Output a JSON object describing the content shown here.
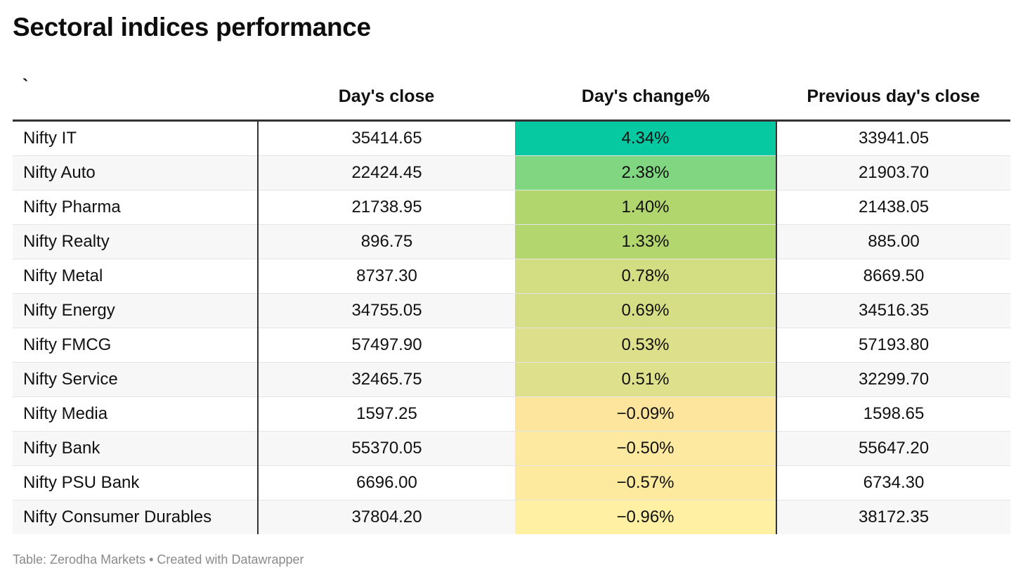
{
  "title": "Sectoral indices performance",
  "footer": "Table: Zerodha Markets • Created with Datawrapper",
  "chart_data": {
    "type": "table",
    "title": "Sectoral indices performance",
    "columns": [
      "`",
      "Day's close",
      "Day's change%",
      "Previous day's close"
    ],
    "rows": [
      {
        "name": "Nifty IT",
        "close": "35414.65",
        "change": "4.34%",
        "change_value": 4.34,
        "prev": "33941.05",
        "color": "#07c9a1"
      },
      {
        "name": "Nifty Auto",
        "close": "22424.45",
        "change": "2.38%",
        "change_value": 2.38,
        "prev": "21903.70",
        "color": "#81d681"
      },
      {
        "name": "Nifty Pharma",
        "close": "21738.95",
        "change": "1.40%",
        "change_value": 1.4,
        "prev": "21438.05",
        "color": "#b2d66e"
      },
      {
        "name": "Nifty Realty",
        "close": "896.75",
        "change": "1.33%",
        "change_value": 1.33,
        "prev": "885.00",
        "color": "#b4d66e"
      },
      {
        "name": "Nifty Metal",
        "close": "8737.30",
        "change": "0.78%",
        "change_value": 0.78,
        "prev": "8669.50",
        "color": "#d3dd82"
      },
      {
        "name": "Nifty Energy",
        "close": "34755.05",
        "change": "0.69%",
        "change_value": 0.69,
        "prev": "34516.35",
        "color": "#d6de85"
      },
      {
        "name": "Nifty FMCG",
        "close": "57497.90",
        "change": "0.53%",
        "change_value": 0.53,
        "prev": "57193.80",
        "color": "#dddf8a"
      },
      {
        "name": "Nifty Service",
        "close": "32465.75",
        "change": "0.51%",
        "change_value": 0.51,
        "prev": "32299.70",
        "color": "#dfe08b"
      },
      {
        "name": "Nifty Media",
        "close": "1597.25",
        "change": "−0.09%",
        "change_value": -0.09,
        "prev": "1598.65",
        "color": "#fde59d"
      },
      {
        "name": "Nifty Bank",
        "close": "55370.05",
        "change": "−0.50%",
        "change_value": -0.5,
        "prev": "55647.20",
        "color": "#fde99f"
      },
      {
        "name": "Nifty PSU Bank",
        "close": "6696.00",
        "change": "−0.57%",
        "change_value": -0.57,
        "prev": "6734.30",
        "color": "#feea9f"
      },
      {
        "name": "Nifty Consumer Durables",
        "close": "37804.20",
        "change": "−0.96%",
        "change_value": -0.96,
        "prev": "38172.35",
        "color": "#fff0a3"
      }
    ]
  }
}
